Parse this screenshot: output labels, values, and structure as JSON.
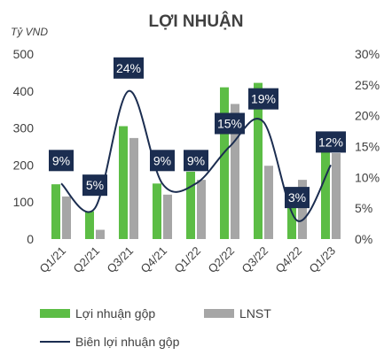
{
  "chart_data": {
    "type": "bar",
    "title": "LỢI NHUẬN",
    "y_unit_label": "Tỷ VND",
    "categories": [
      "Q1/21",
      "Q2/21",
      "Q3/21",
      "Q4/21",
      "Q1/22",
      "Q2/22",
      "Q3/22",
      "Q4/22",
      "Q1/23"
    ],
    "series": [
      {
        "name": "Lợi nhuận gộp",
        "type": "bar",
        "axis": "left",
        "color": "#5cbd45",
        "values": [
          148,
          75,
          305,
          150,
          182,
          410,
          422,
          85,
          242
        ]
      },
      {
        "name": "LNST",
        "type": "bar",
        "axis": "left",
        "color": "#a6a6a6",
        "values": [
          115,
          25,
          273,
          120,
          160,
          365,
          198,
          160,
          232
        ]
      },
      {
        "name": "Biên lợi nhuận gộp",
        "type": "line",
        "axis": "right",
        "color": "#1b2d50",
        "values": [
          9,
          5,
          24,
          9,
          9,
          15,
          19,
          3,
          12
        ],
        "labels": [
          "9%",
          "5%",
          "24%",
          "9%",
          "9%",
          "15%",
          "19%",
          "3%",
          "12%"
        ]
      }
    ],
    "y_left": {
      "min": 0,
      "max": 500,
      "ticks": [
        "0",
        "100",
        "200",
        "300",
        "400",
        "500"
      ]
    },
    "y_right": {
      "min": 0,
      "max": 30,
      "ticks": [
        "0%",
        "5%",
        "10%",
        "15%",
        "20%",
        "25%",
        "30%"
      ]
    },
    "grid": false,
    "legend_position": "bottom-left",
    "label_box_color": "#1b2d50"
  }
}
